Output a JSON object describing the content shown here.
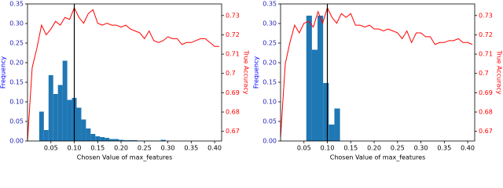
{
  "chart_data": [
    {
      "type": "histogram",
      "bins": [
        0.025,
        0.035,
        0.045,
        0.055,
        0.065,
        0.075,
        0.085,
        0.095,
        0.105,
        0.115,
        0.125,
        0.135,
        0.145,
        0.155,
        0.165,
        0.175,
        0.185,
        0.195,
        0.205,
        0.215,
        0.225,
        0.235,
        0.245,
        0.255,
        0.265,
        0.275,
        0.285,
        0.295
      ],
      "values": [
        0.075,
        0.028,
        0.168,
        0.12,
        0.143,
        0.205,
        0.105,
        0.11,
        0.085,
        0.055,
        0.032,
        0.018,
        0.012,
        0.01,
        0.008,
        0.005,
        0.005,
        0.003,
        0.002,
        0.002,
        0.002,
        0.001,
        0.001,
        0.001,
        0.001,
        0.001,
        0.003
      ],
      "color": "#1f77b4",
      "line": {
        "type": "line",
        "axis": "y2",
        "color": "#ff0000",
        "x": [
          0,
          0.01,
          0.02,
          0.03,
          0.04,
          0.05,
          0.06,
          0.07,
          0.08,
          0.09,
          0.1,
          0.11,
          0.12,
          0.13,
          0.14,
          0.15,
          0.16,
          0.17,
          0.18,
          0.19,
          0.2,
          0.21,
          0.22,
          0.23,
          0.24,
          0.25,
          0.26,
          0.27,
          0.28,
          0.29,
          0.3,
          0.31,
          0.32,
          0.33,
          0.34,
          0.35,
          0.36,
          0.37,
          0.38,
          0.39,
          0.4,
          0.41
        ],
        "values": [
          0.665,
          0.703,
          0.713,
          0.725,
          0.72,
          0.723,
          0.727,
          0.725,
          0.729,
          0.728,
          0.734,
          0.729,
          0.726,
          0.731,
          0.733,
          0.726,
          0.725,
          0.726,
          0.725,
          0.725,
          0.724,
          0.725,
          0.723,
          0.722,
          0.721,
          0.718,
          0.722,
          0.717,
          0.716,
          0.717,
          0.719,
          0.718,
          0.718,
          0.715,
          0.716,
          0.716,
          0.717,
          0.718,
          0.718,
          0.716,
          0.714,
          0.714
        ]
      },
      "vline": 0.1,
      "x_label": "Chosen Value of max_features",
      "y_label": "Frequency",
      "y2_label": "True Accuracy",
      "xlim": [
        0,
        0.415
      ],
      "xticks": [
        0.05,
        {
          "value": 0.1,
          "label": "0.10"
        },
        0.15,
        {
          "value": 0.2,
          "label": "0.20"
        },
        0.25,
        {
          "value": 0.3,
          "label": "0.30"
        },
        0.35,
        {
          "value": 0.4,
          "label": "0.40"
        }
      ],
      "ylim": [
        0,
        0.35
      ],
      "yticks": [
        {
          "value": 0,
          "label": "0.00"
        },
        0.05,
        {
          "value": 0.1,
          "label": "0.10"
        },
        0.15,
        {
          "value": 0.2,
          "label": "0.20"
        },
        0.25,
        {
          "value": 0.3,
          "label": "0.30"
        },
        0.35
      ],
      "y2lim": [
        0.665,
        0.736
      ],
      "y2ticks": [
        0.67,
        0.68,
        0.69,
        0.7,
        0.71,
        0.72,
        0.73
      ]
    },
    {
      "type": "histogram",
      "bins": [
        0.055,
        0.067,
        0.079,
        0.091,
        0.103,
        0.115,
        0.127
      ],
      "values": [
        0.32,
        0.233,
        0.32,
        0.148,
        0.042,
        0.083
      ],
      "color": "#1f77b4",
      "line": {
        "type": "line",
        "axis": "y2",
        "color": "#ff0000",
        "x": [
          0,
          0.01,
          0.02,
          0.03,
          0.04,
          0.05,
          0.06,
          0.07,
          0.08,
          0.09,
          0.1,
          0.11,
          0.12,
          0.13,
          0.14,
          0.15,
          0.16,
          0.17,
          0.18,
          0.19,
          0.2,
          0.21,
          0.22,
          0.23,
          0.24,
          0.25,
          0.26,
          0.27,
          0.28,
          0.29,
          0.3,
          0.31,
          0.32,
          0.33,
          0.34,
          0.35,
          0.36,
          0.37,
          0.38,
          0.39,
          0.4,
          0.41
        ],
        "values": [
          0.667,
          0.705,
          0.716,
          0.725,
          0.721,
          0.726,
          0.727,
          0.724,
          0.732,
          0.726,
          0.734,
          0.729,
          0.726,
          0.731,
          0.729,
          0.731,
          0.725,
          0.725,
          0.724,
          0.725,
          0.723,
          0.723,
          0.722,
          0.723,
          0.722,
          0.721,
          0.718,
          0.722,
          0.716,
          0.721,
          0.721,
          0.719,
          0.719,
          0.715,
          0.716,
          0.716,
          0.717,
          0.717,
          0.718,
          0.716,
          0.716,
          0.715
        ]
      },
      "vline": 0.1,
      "x_label": "Chosen Value of max_features",
      "y_label": "Frequency",
      "y2_label": "True Accuracy",
      "xlim": [
        0,
        0.415
      ],
      "xticks": [
        0.05,
        {
          "value": 0.1,
          "label": "0.10"
        },
        0.15,
        {
          "value": 0.2,
          "label": "0.20"
        },
        0.25,
        {
          "value": 0.3,
          "label": "0.30"
        },
        0.35,
        {
          "value": 0.4,
          "label": "0.40"
        }
      ],
      "ylim": [
        0,
        0.35
      ],
      "yticks": [
        {
          "value": 0,
          "label": "0.00"
        },
        0.05,
        {
          "value": 0.1,
          "label": "0.10"
        },
        0.15,
        {
          "value": 0.2,
          "label": "0.20"
        },
        0.25,
        {
          "value": 0.3,
          "label": "0.30"
        },
        0.35
      ],
      "y2lim": [
        0.665,
        0.736
      ],
      "y2ticks": [
        0.67,
        0.68,
        0.69,
        0.7,
        0.71,
        0.72,
        0.73
      ]
    }
  ]
}
